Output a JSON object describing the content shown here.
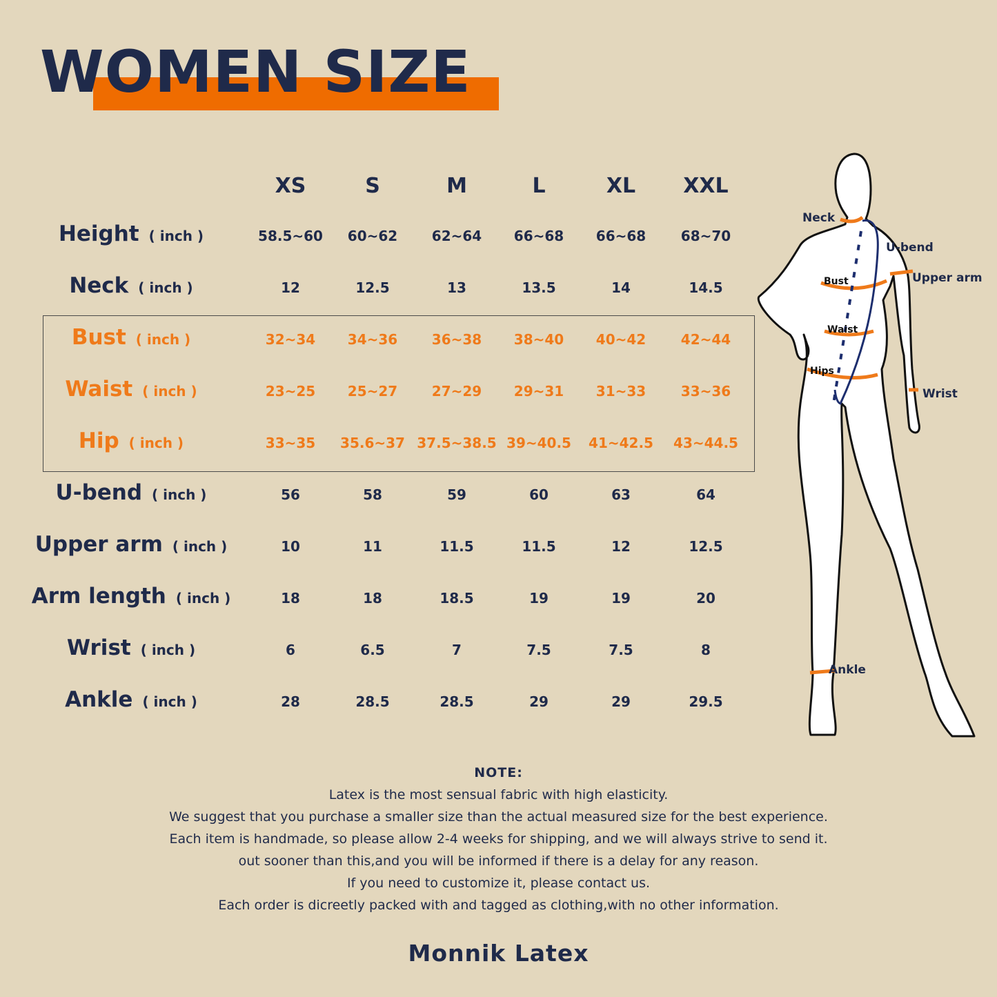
{
  "title": "WOMEN SIZE",
  "colors": {
    "navy": "#1f2a4a",
    "orange": "#ef6c00",
    "background": "#e3d7bd"
  },
  "table": {
    "sizes": [
      "XS",
      "S",
      "M",
      "L",
      "XL",
      "XXL"
    ],
    "unit": "( inch )",
    "rows": [
      {
        "label": "Height",
        "highlight": false,
        "values": [
          "58.5~60",
          "60~62",
          "62~64",
          "66~68",
          "66~68",
          "68~70"
        ]
      },
      {
        "label": "Neck",
        "highlight": false,
        "values": [
          "12",
          "12.5",
          "13",
          "13.5",
          "14",
          "14.5"
        ]
      },
      {
        "label": "Bust",
        "highlight": true,
        "values": [
          "32~34",
          "34~36",
          "36~38",
          "38~40",
          "40~42",
          "42~44"
        ]
      },
      {
        "label": "Waist",
        "highlight": true,
        "values": [
          "23~25",
          "25~27",
          "27~29",
          "29~31",
          "31~33",
          "33~36"
        ]
      },
      {
        "label": "Hip",
        "highlight": true,
        "values": [
          "33~35",
          "35.6~37",
          "37.5~38.5",
          "39~40.5",
          "41~42.5",
          "43~44.5"
        ]
      },
      {
        "label": "U-bend",
        "highlight": false,
        "values": [
          "56",
          "58",
          "59",
          "60",
          "63",
          "64"
        ]
      },
      {
        "label": "Upper arm",
        "highlight": false,
        "values": [
          "10",
          "11",
          "11.5",
          "11.5",
          "12",
          "12.5"
        ]
      },
      {
        "label": "Arm length",
        "highlight": false,
        "values": [
          "18",
          "18",
          "18.5",
          "19",
          "19",
          "20"
        ]
      },
      {
        "label": "Wrist",
        "highlight": false,
        "values": [
          "6",
          "6.5",
          "7",
          "7.5",
          "7.5",
          "8"
        ]
      },
      {
        "label": "Ankle",
        "highlight": false,
        "values": [
          "28",
          "28.5",
          "28.5",
          "29",
          "29",
          "29.5"
        ]
      }
    ]
  },
  "figure": {
    "labels": {
      "neck": "Neck",
      "ubend": "U-bend",
      "upper_arm": "Upper arm",
      "bust": "Bust",
      "waist": "Waist",
      "hips": "Hips",
      "wrist": "Wrist",
      "ankle": "Ankle"
    }
  },
  "note": {
    "title": "NOTE:",
    "lines": [
      "Latex is the most sensual fabric with high elasticity.",
      "We suggest that you purchase a smaller size than the actual measured size for the best experience.",
      "Each item is handmade, so please allow 2-4 weeks for shipping, and we will always strive to send it.",
      "out sooner than this,and you will be informed if there is a delay for any reason.",
      "If you need to customize it, please contact us.",
      "Each order is dicreetly packed with and tagged as clothing,with no other information."
    ]
  },
  "brand": "Monnik Latex"
}
